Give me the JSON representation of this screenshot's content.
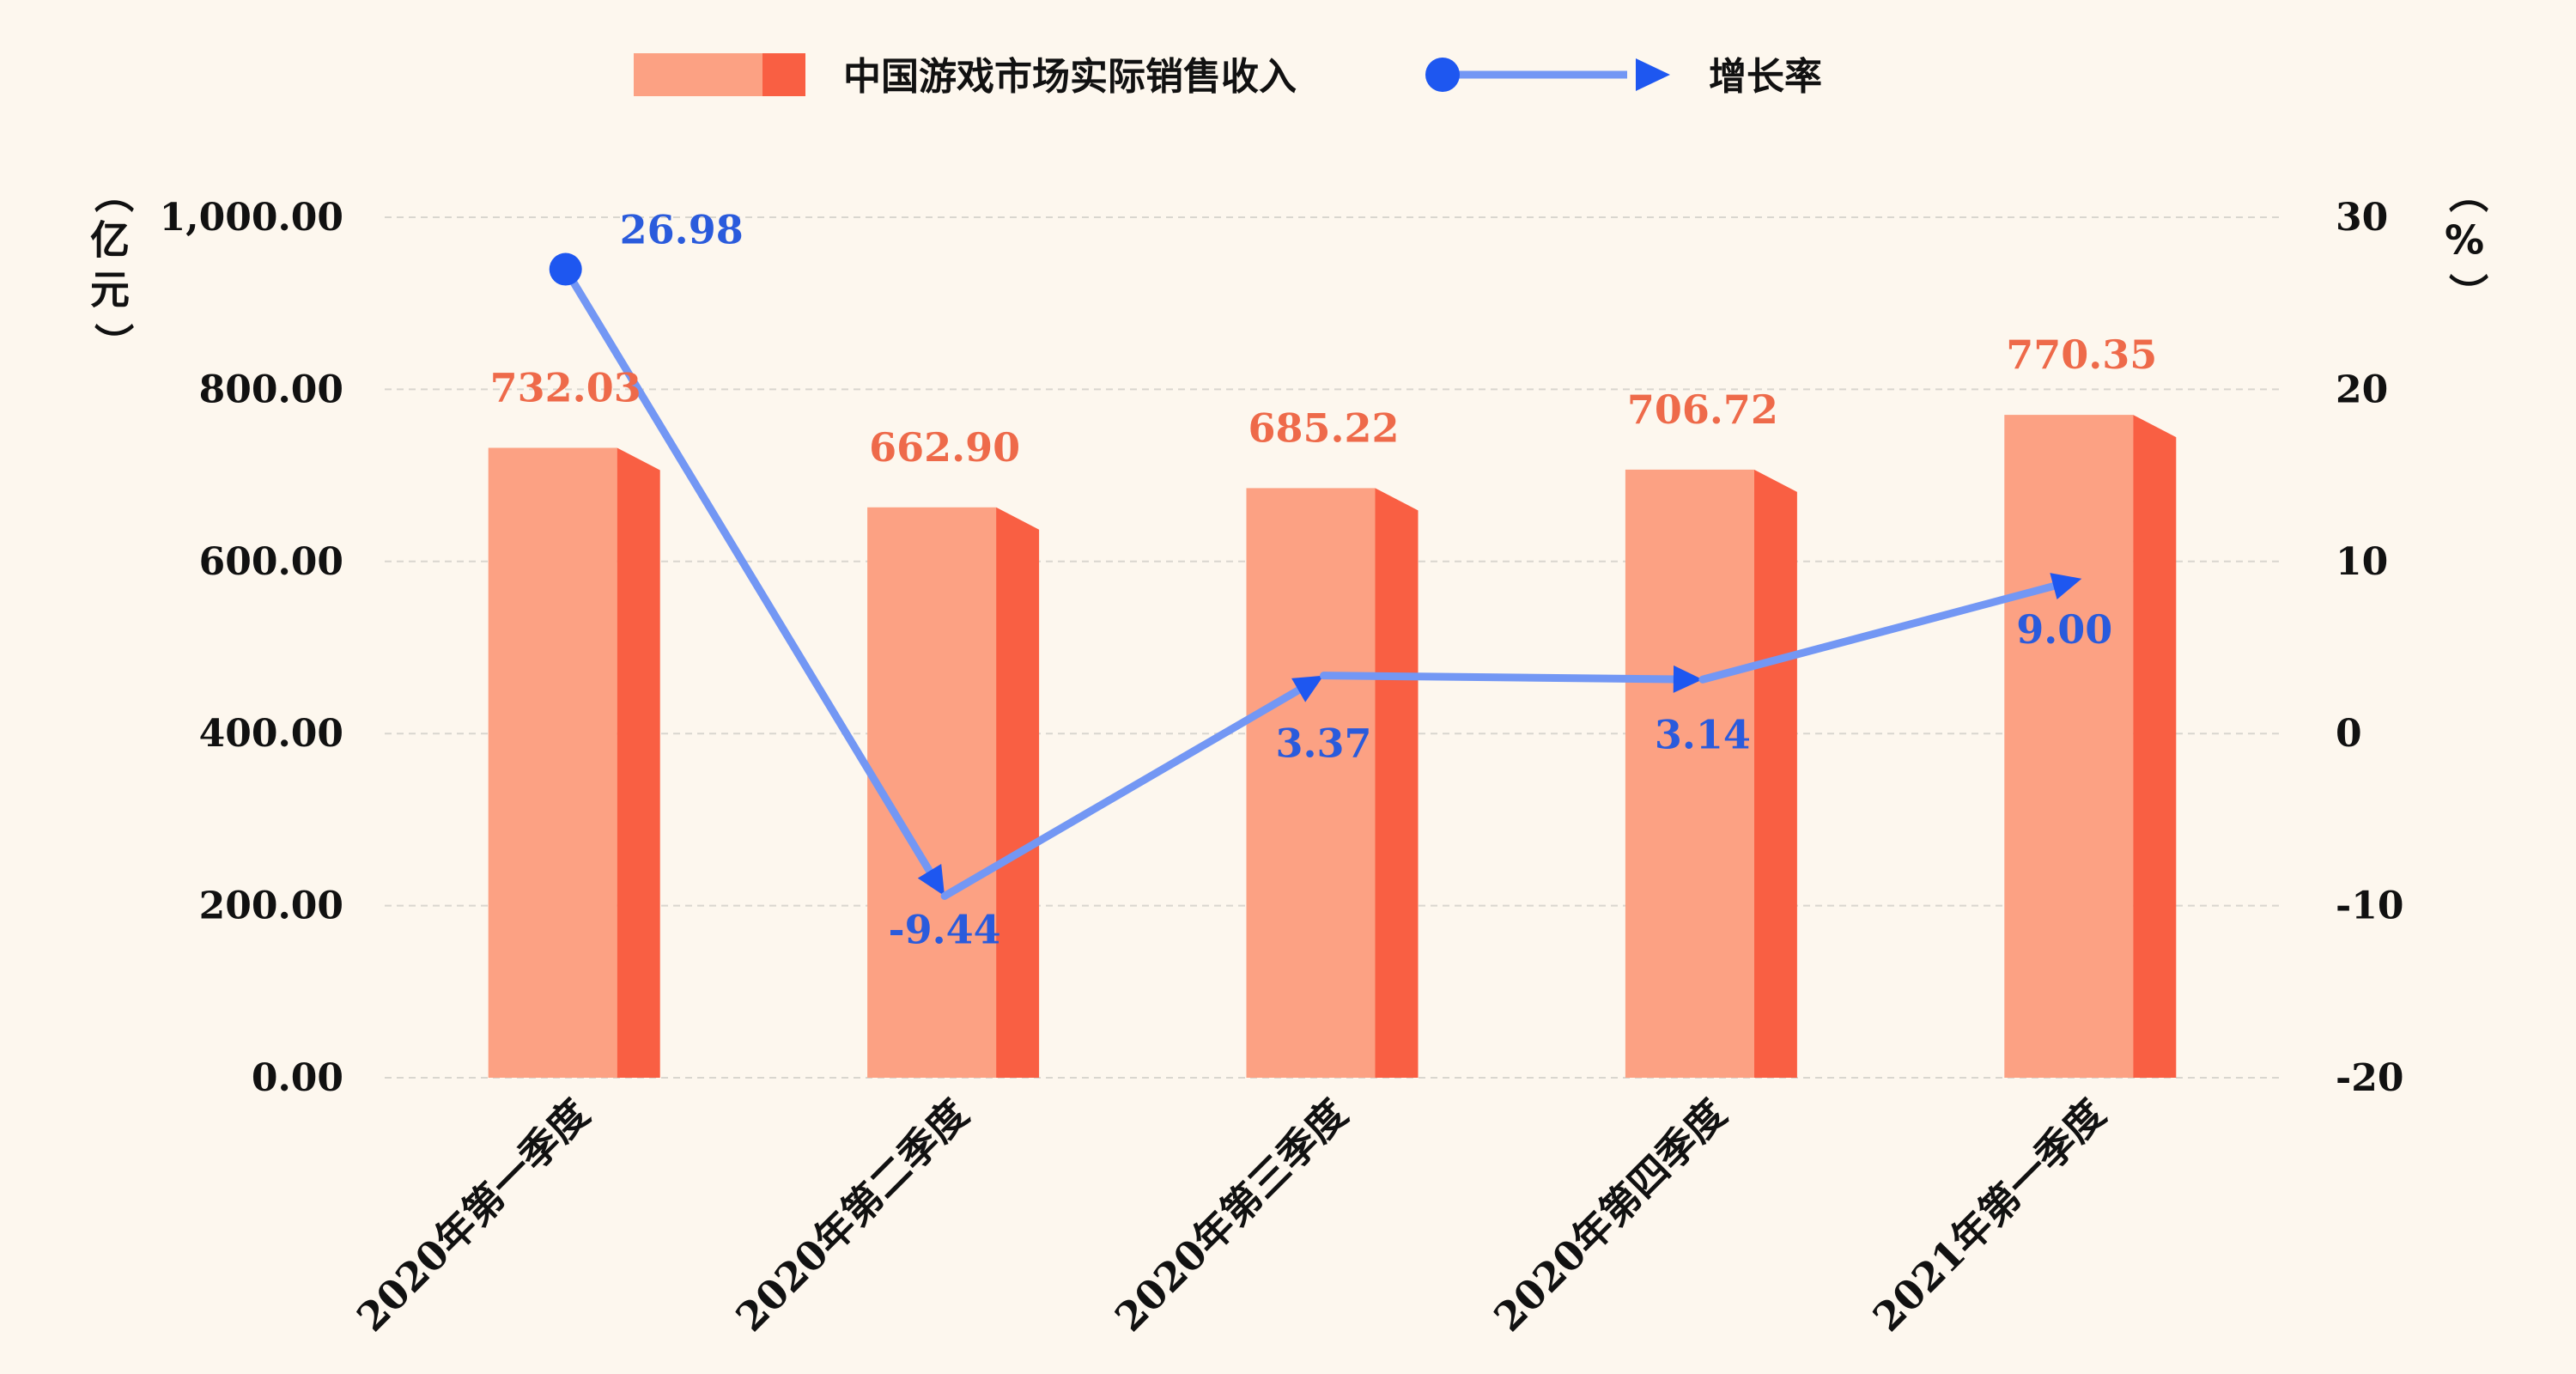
{
  "chart_data": {
    "type": "bar",
    "categories": [
      "2020年第一季度",
      "2020年第二季度",
      "2020年第三季度",
      "2020年第四季度",
      "2021年第一季度"
    ],
    "series": [
      {
        "name": "中国游戏市场实际销售收入",
        "type": "bar",
        "axis": "left",
        "values": [
          732.03,
          662.9,
          685.22,
          706.72,
          770.35
        ],
        "labels": [
          "732.03",
          "662.90",
          "685.22",
          "706.72",
          "770.35"
        ]
      },
      {
        "name": "增长率",
        "type": "line",
        "axis": "right",
        "values": [
          26.98,
          -9.44,
          3.37,
          3.14,
          9.0
        ],
        "labels": [
          "26.98",
          "-9.44",
          "3.37",
          "3.14",
          "9.00"
        ]
      }
    ],
    "left_axis": {
      "unit": "（亿元）",
      "range": [
        0,
        1000
      ],
      "ticks": [
        0,
        200,
        400,
        600,
        800,
        1000
      ],
      "tick_labels": [
        "0.00",
        "200.00",
        "400.00",
        "600.00",
        "800.00",
        "1,000.00"
      ]
    },
    "right_axis": {
      "unit": "（%）",
      "range": [
        -20,
        30
      ],
      "ticks": [
        -20,
        -10,
        0,
        10,
        20,
        30
      ],
      "tick_labels": [
        "-20",
        "-10",
        "0",
        "10",
        "20",
        "30"
      ]
    },
    "grid": true,
    "legend_position": "top-center",
    "colors": {
      "bar_front": "#fca183",
      "bar_side": "#f95f43",
      "bar_label": "#ee6a4a",
      "line": "#7397f4",
      "marker": "#1e57f0",
      "rate_label": "#2a5bdc",
      "grid": "#d9d6cf",
      "text": "#111111"
    }
  }
}
